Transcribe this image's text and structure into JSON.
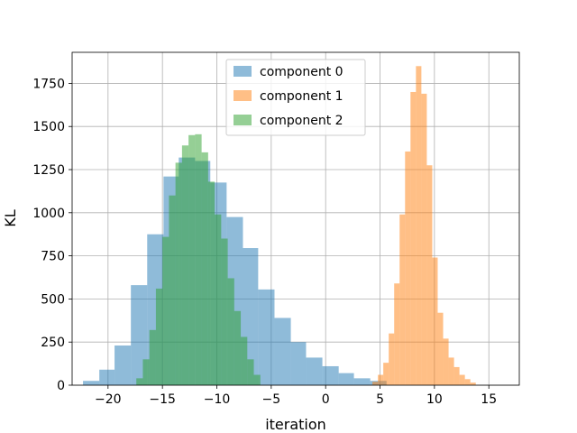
{
  "chart_data": {
    "type": "histogram",
    "xlabel": "iteration",
    "ylabel": "KL",
    "xlim": [
      -23.3,
      17.8
    ],
    "ylim": [
      0,
      1930
    ],
    "xticks": [
      -20,
      -15,
      -10,
      -5,
      0,
      5,
      10,
      15
    ],
    "yticks": [
      0,
      250,
      500,
      750,
      1000,
      1250,
      1500,
      1750
    ],
    "grid": true,
    "legend_position": "upper-center",
    "series": [
      {
        "name": "component 0",
        "color": "#1f77b4",
        "alpha": 0.5,
        "bin_edges": [
          -22.3,
          -20.8,
          -19.4,
          -17.9,
          -16.4,
          -14.9,
          -13.5,
          -12.0,
          -10.6,
          -9.1,
          -7.6,
          -6.2,
          -4.7,
          -3.2,
          -1.8,
          -0.3,
          1.2,
          2.6,
          4.1,
          5.6
        ],
        "counts": [
          25,
          90,
          230,
          580,
          875,
          1210,
          1320,
          1300,
          1175,
          975,
          795,
          555,
          390,
          250,
          160,
          110,
          70,
          40,
          25
        ]
      },
      {
        "name": "component 1",
        "color": "#ff7f0e",
        "alpha": 0.5,
        "bin_edges": [
          4.3,
          4.8,
          5.3,
          5.8,
          6.3,
          6.8,
          7.3,
          7.8,
          8.3,
          8.8,
          9.3,
          9.8,
          10.3,
          10.8,
          11.3,
          11.8,
          12.3,
          12.8,
          13.3,
          13.8
        ],
        "counts": [
          20,
          60,
          130,
          300,
          590,
          990,
          1355,
          1700,
          1850,
          1690,
          1275,
          740,
          420,
          270,
          160,
          105,
          60,
          35,
          15
        ]
      },
      {
        "name": "component 2",
        "color": "#2ca02c",
        "alpha": 0.5,
        "bin_edges": [
          -17.4,
          -16.8,
          -16.2,
          -15.6,
          -15.0,
          -14.4,
          -13.8,
          -13.2,
          -12.6,
          -12.0,
          -11.4,
          -10.8,
          -10.2,
          -9.6,
          -9.0,
          -8.4,
          -7.8,
          -7.2,
          -6.6,
          -6.0
        ],
        "counts": [
          40,
          150,
          320,
          560,
          860,
          1100,
          1290,
          1390,
          1450,
          1455,
          1350,
          1180,
          990,
          850,
          620,
          430,
          280,
          150,
          60
        ]
      }
    ]
  }
}
